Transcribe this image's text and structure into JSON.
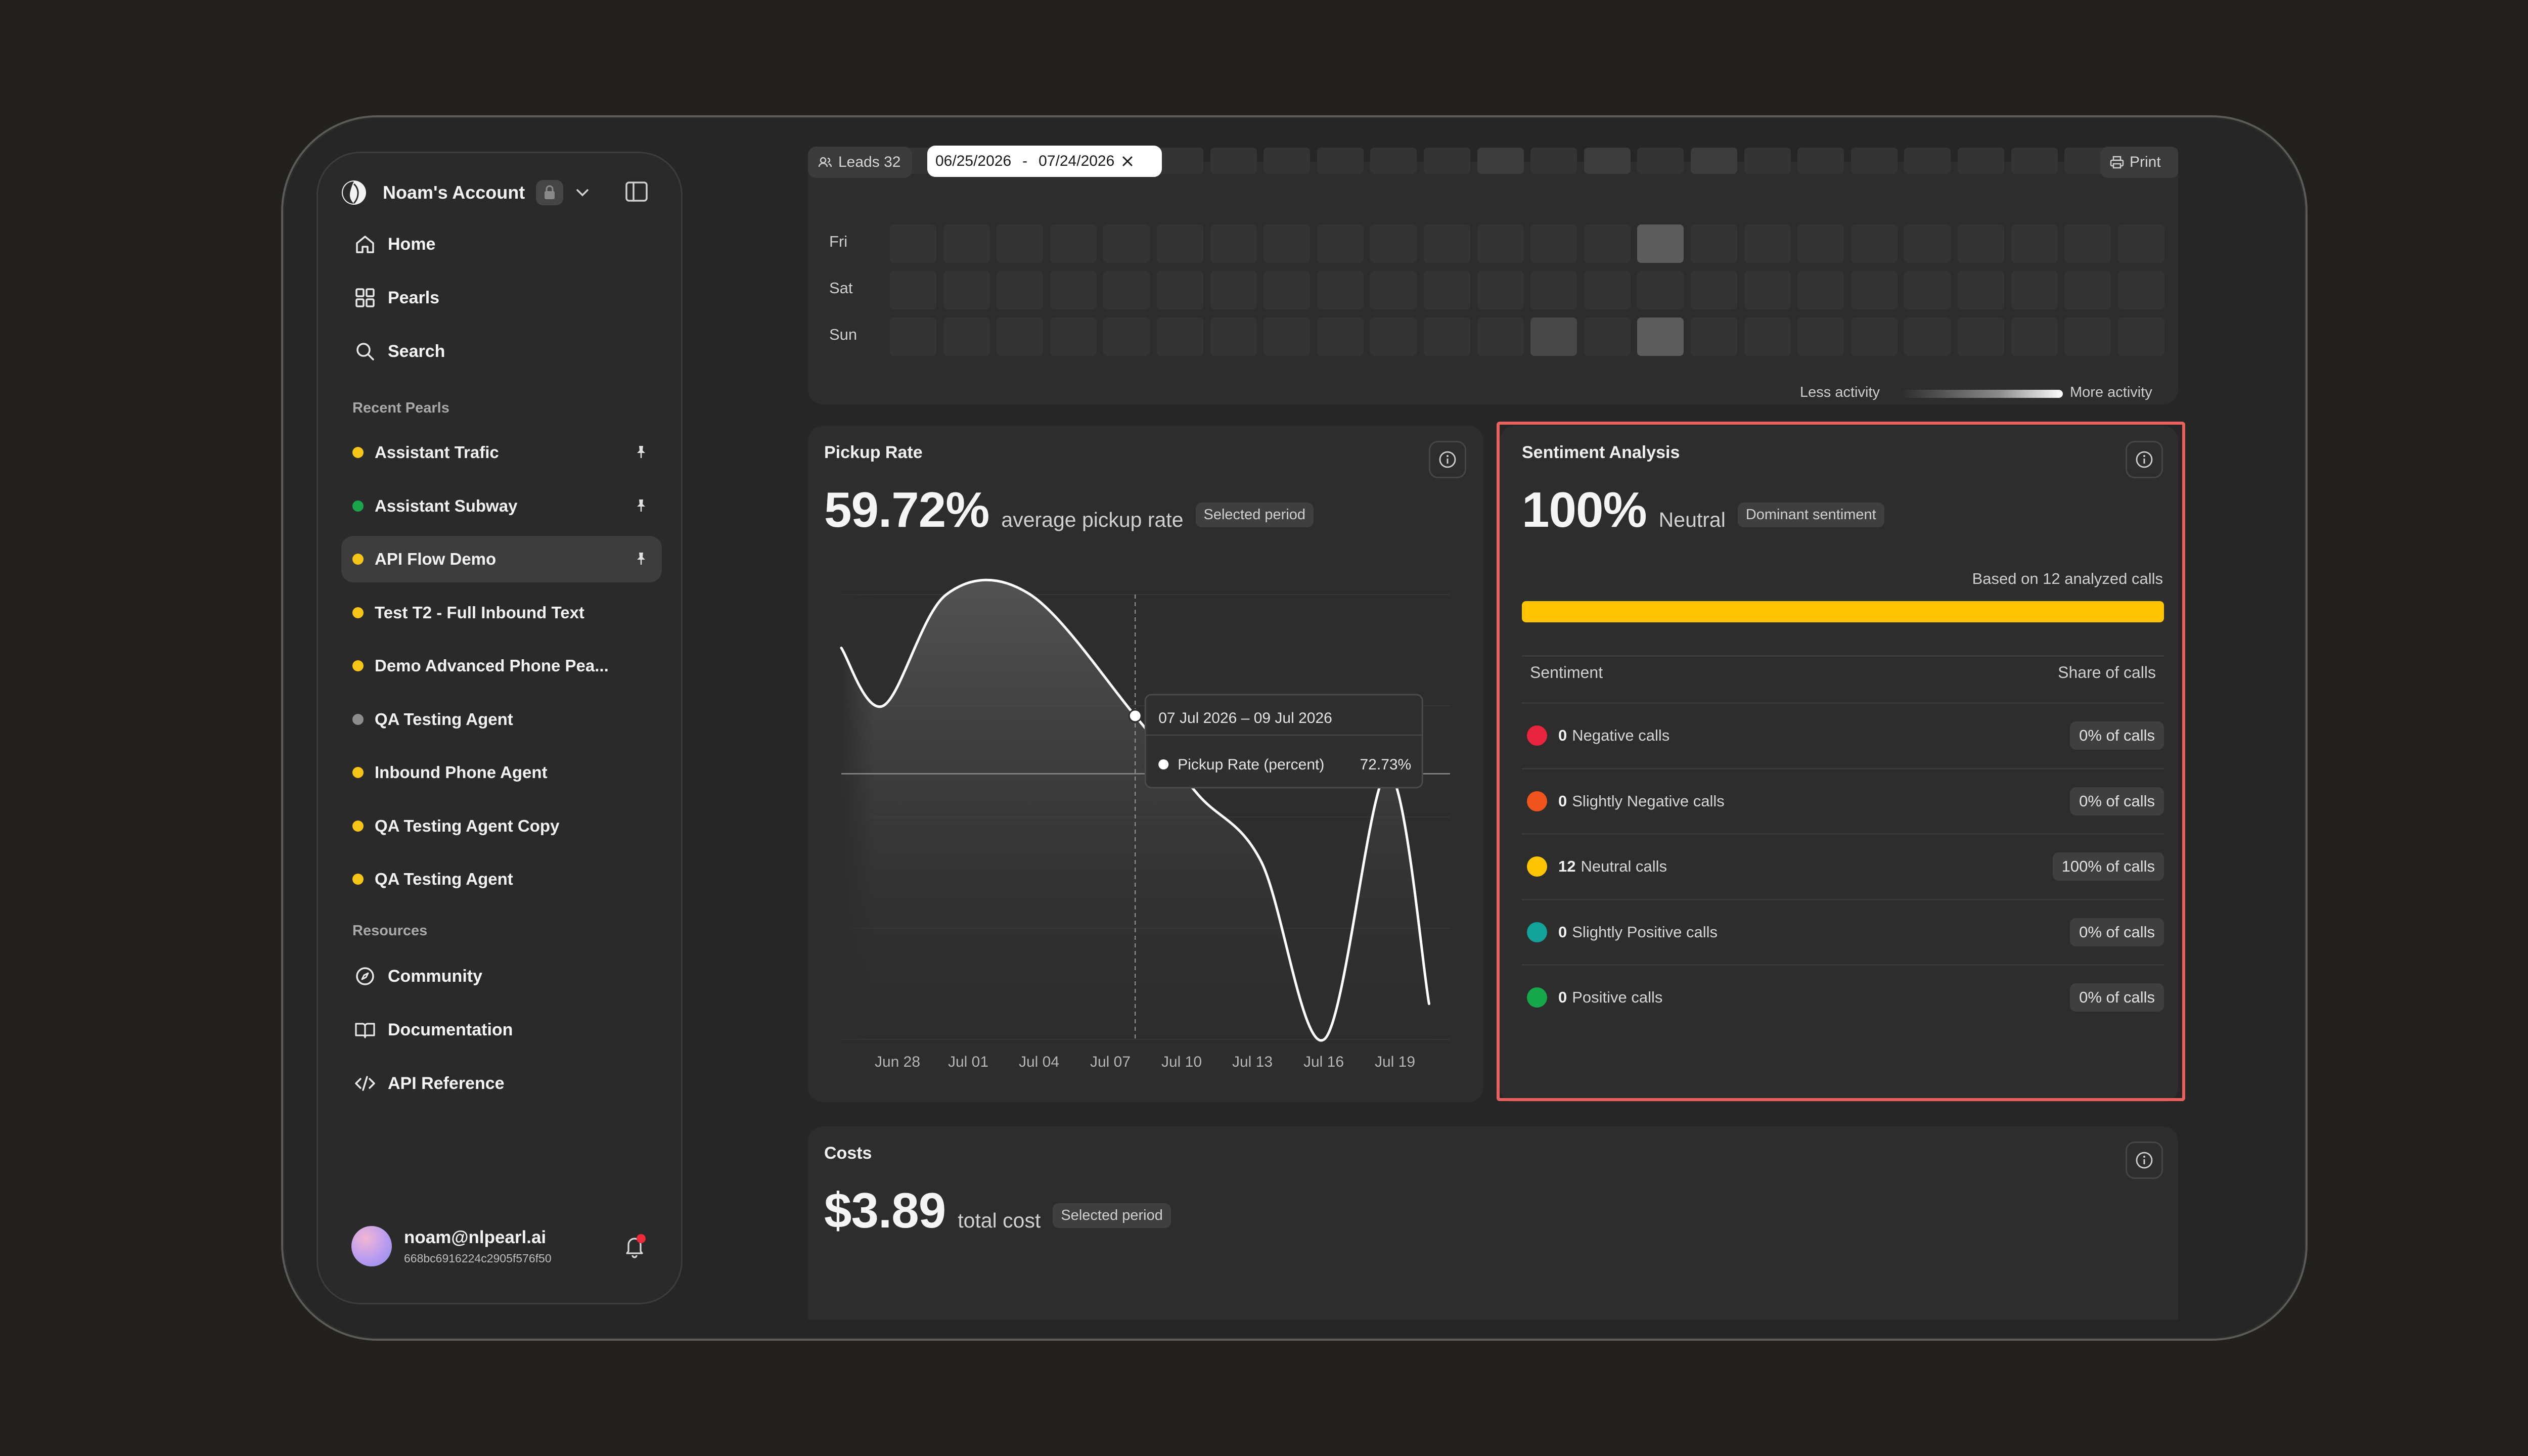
{
  "sidebar": {
    "account_name": "Noam's Account",
    "nav": [
      {
        "label": "Home",
        "icon": "home-icon"
      },
      {
        "label": "Pearls",
        "icon": "grid-icon"
      },
      {
        "label": "Search",
        "icon": "search-icon"
      }
    ],
    "recent_heading": "Recent Pearls",
    "recent": [
      {
        "label": "Assistant Trafic",
        "color": "#f5c518",
        "pinned": true
      },
      {
        "label": "Assistant Subway",
        "color": "#19a54a",
        "pinned": true
      },
      {
        "label": "API Flow Demo",
        "color": "#f5c518",
        "pinned": true,
        "active": true
      },
      {
        "label": "Test T2 - Full Inbound Text",
        "color": "#f5c518"
      },
      {
        "label": "Demo Advanced Phone Pea...",
        "color": "#f5c518"
      },
      {
        "label": "QA Testing Agent",
        "color": "#8d8d8d"
      },
      {
        "label": "Inbound Phone Agent",
        "color": "#f5c518"
      },
      {
        "label": "QA Testing Agent Copy",
        "color": "#f5c518"
      },
      {
        "label": "QA Testing Agent",
        "color": "#f5c518"
      }
    ],
    "resources_heading": "Resources",
    "resources": [
      {
        "label": "Community",
        "icon": "compass-icon"
      },
      {
        "label": "Documentation",
        "icon": "book-icon"
      },
      {
        "label": "API Reference",
        "icon": "code-icon"
      }
    ],
    "user": {
      "email": "noam@nlpearl.ai",
      "id": "668bc6916224c2905f576f50"
    }
  },
  "toolbar": {
    "leads_label": "Leads 32",
    "date_from": "06/25/2026",
    "date_sep": "-",
    "date_to": "07/24/2026",
    "print_label": "Print"
  },
  "activity": {
    "days": [
      "Fri",
      "Sat",
      "Sun"
    ],
    "legend_less": "Less activity",
    "legend_more": "More activity"
  },
  "pickup": {
    "title": "Pickup Rate",
    "value": "59.72%",
    "subtitle": "average pickup rate",
    "badge": "Selected period",
    "tooltip_range": "07 Jul 2026 – 09 Jul 2026",
    "tooltip_series": "Pickup Rate (percent)",
    "tooltip_value": "72.73%",
    "ref_label": "59.72%"
  },
  "sentiment": {
    "title": "Sentiment Analysis",
    "value": "100%",
    "subtitle": "Neutral",
    "badge": "Dominant sentiment",
    "based_on": "Based on 12 analyzed calls",
    "bar_fraction": 1.0,
    "bar_color": "#ffc400",
    "col_sentiment": "Sentiment",
    "col_share": "Share of calls",
    "rows": [
      {
        "count": "0",
        "label": "Negative calls",
        "share": "0% of calls",
        "color": "#e8253e"
      },
      {
        "count": "0",
        "label": "Slightly Negative calls",
        "share": "0% of calls",
        "color": "#f0541e"
      },
      {
        "count": "12",
        "label": "Neutral calls",
        "share": "100% of calls",
        "color": "#ffc400"
      },
      {
        "count": "0",
        "label": "Slightly Positive calls",
        "share": "0% of calls",
        "color": "#14a39a"
      },
      {
        "count": "0",
        "label": "Positive calls",
        "share": "0% of calls",
        "color": "#17a74b"
      }
    ]
  },
  "costs": {
    "title": "Costs",
    "value": "$3.89",
    "subtitle": "total cost",
    "badge": "Selected period"
  },
  "chart_data": {
    "type": "area",
    "x_ticks": [
      "Jun 28",
      "Jul 01",
      "Jul 04",
      "Jul 07",
      "Jul 10",
      "Jul 13",
      "Jul 16",
      "Jul 19"
    ],
    "points": [
      {
        "date": "Jun 25",
        "value": 88
      },
      {
        "date": "Jun 27",
        "value": 75
      },
      {
        "date": "Jun 30",
        "value": 100
      },
      {
        "date": "Jul 03",
        "value": 100
      },
      {
        "date": "Jul 08",
        "value": 72.73
      },
      {
        "date": "Jul 11",
        "value": 55
      },
      {
        "date": "Jul 14",
        "value": 40
      },
      {
        "date": "Jul 17",
        "value": 0
      },
      {
        "date": "Jul 20",
        "value": 60
      },
      {
        "date": "Jul 22",
        "value": 8
      }
    ],
    "reference_line": 59.72,
    "ylim": [
      0,
      100
    ]
  }
}
